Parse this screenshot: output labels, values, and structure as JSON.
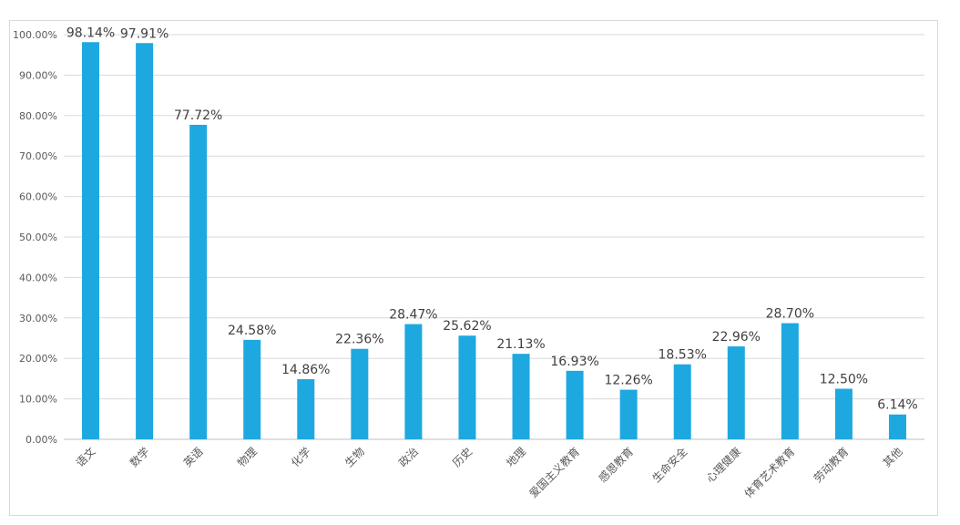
{
  "chart_data": {
    "type": "bar",
    "categories": [
      "语文",
      "数学",
      "英语",
      "物理",
      "化学",
      "生物",
      "政治",
      "历史",
      "地理",
      "爱国主义教育",
      "感恩教育",
      "生命安全",
      "心理健康",
      "体育艺术教育",
      "劳动教育",
      "其他"
    ],
    "values": [
      98.14,
      97.91,
      77.72,
      24.58,
      14.86,
      22.36,
      28.47,
      25.62,
      21.13,
      16.93,
      12.26,
      18.53,
      22.96,
      28.7,
      12.5,
      6.14
    ],
    "data_labels": [
      "98.14%",
      "97.91%",
      "77.72%",
      "24.58%",
      "14.86%",
      "22.36%",
      "28.47%",
      "25.62%",
      "21.13%",
      "16.93%",
      "12.26%",
      "18.53%",
      "22.96%",
      "28.70%",
      "12.50%",
      "6.14%"
    ],
    "y_ticks": [
      0,
      10,
      20,
      30,
      40,
      50,
      60,
      70,
      80,
      90,
      100
    ],
    "y_tick_labels": [
      "0.00%",
      "10.00%",
      "20.00%",
      "30.00%",
      "40.00%",
      "50.00%",
      "60.00%",
      "70.00%",
      "80.00%",
      "90.00%",
      "100.00%"
    ],
    "ylim": [
      0,
      100
    ],
    "grid": true,
    "legend": "none",
    "bar_color": "#1EA8E0",
    "title": "",
    "xlabel": "",
    "ylabel": ""
  }
}
